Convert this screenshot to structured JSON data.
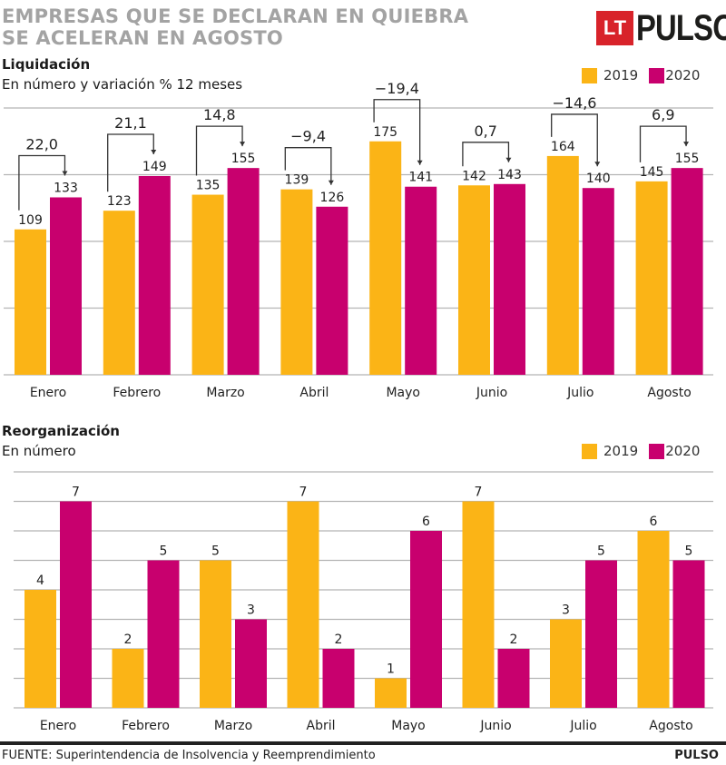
{
  "title_lines": [
    "EMPRESAS QUE SE DECLARAN EN QUIEBRA",
    "SE ACELERAN EN AGOSTO"
  ],
  "logo": {
    "badge": "LT",
    "name": "PULSO"
  },
  "colors": {
    "y2019": "#fbb416",
    "y2020": "#c8006e",
    "grid": "#b4b4b4",
    "bracket": "#333333"
  },
  "legend": [
    {
      "label": "2019"
    },
    {
      "label": "2020"
    }
  ],
  "chart_data": [
    {
      "type": "bar",
      "title": "Liquidación",
      "subtitle": "En número y variación % 12 meses",
      "categories": [
        "Enero",
        "Febrero",
        "Marzo",
        "Abril",
        "Mayo",
        "Junio",
        "Julio",
        "Agosto"
      ],
      "series": [
        {
          "name": "2019",
          "values": [
            109,
            123,
            135,
            139,
            175,
            142,
            164,
            145
          ]
        },
        {
          "name": "2020",
          "values": [
            133,
            149,
            155,
            126,
            141,
            143,
            140,
            155
          ]
        }
      ],
      "variation_labels": [
        "22,0",
        "21,1",
        "14,8",
        "−9,4",
        "−19,4",
        "0,7",
        "−14,6",
        "6,9"
      ],
      "ylim": [
        0,
        200
      ],
      "gridlines": [
        0,
        50,
        100,
        150,
        200
      ],
      "grid": true,
      "legend_position": "top-right",
      "xlabel": "",
      "ylabel": ""
    },
    {
      "type": "bar",
      "title": "Reorganización",
      "subtitle": "En número",
      "categories": [
        "Enero",
        "Febrero",
        "Marzo",
        "Abril",
        "Mayo",
        "Junio",
        "Julio",
        "Agosto"
      ],
      "series": [
        {
          "name": "2019",
          "values": [
            4,
            2,
            5,
            7,
            1,
            7,
            3,
            6
          ]
        },
        {
          "name": "2020",
          "values": [
            7,
            5,
            3,
            2,
            6,
            2,
            5,
            5
          ]
        }
      ],
      "ylim": [
        0,
        8
      ],
      "gridlines": [
        0,
        1,
        2,
        3,
        4,
        5,
        6,
        7,
        8
      ],
      "grid": true,
      "legend_position": "top-right",
      "xlabel": "",
      "ylabel": ""
    }
  ],
  "footer": {
    "source": "FUENTE: Superintendencia de Insolvencia y Reemprendimiento",
    "brand": "PULSO"
  }
}
